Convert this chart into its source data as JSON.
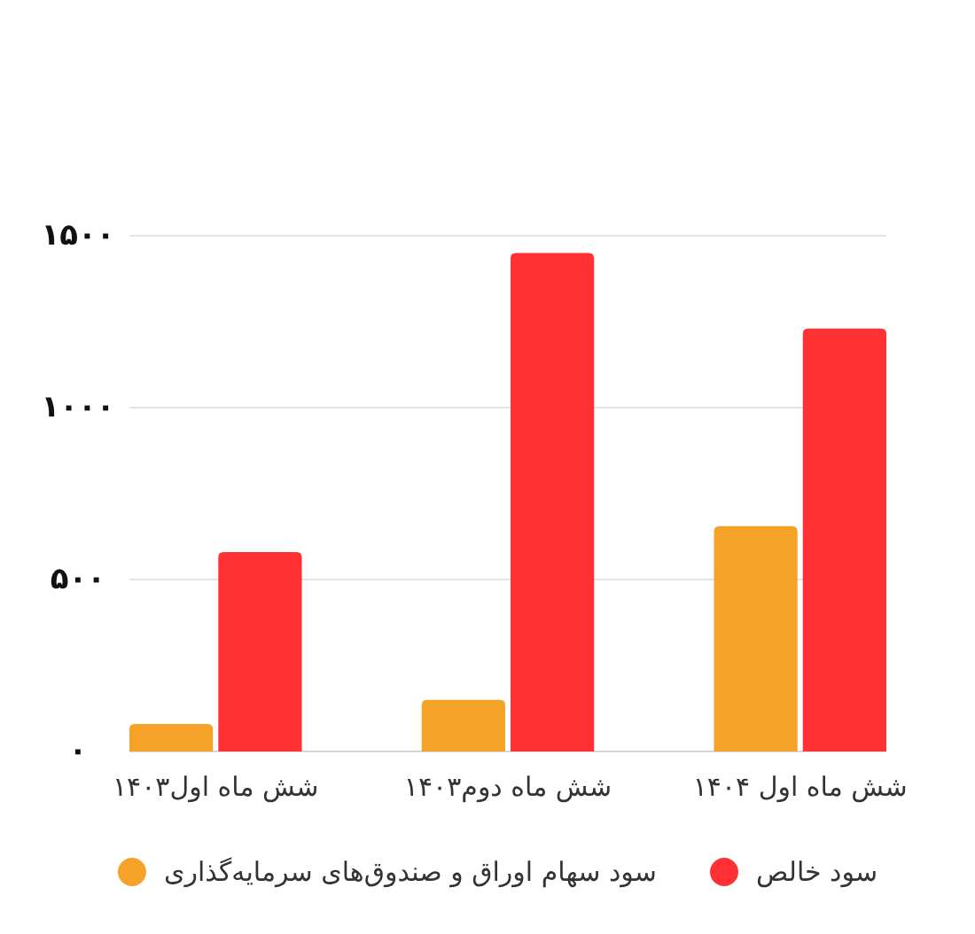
{
  "chart_data": {
    "type": "bar",
    "categories": [
      "شش ماه اول۱۴۰۳",
      "شش ماه دوم۱۴۰۳",
      "شش ماه اول ۱۴۰۴"
    ],
    "series": [
      {
        "name": "سود سهام اوراق و صندوق‌های سرمایه‌گذاری",
        "color": "#f5a228",
        "values": [
          80,
          150,
          655
        ]
      },
      {
        "name": "سود خالص",
        "color": "#ff3134",
        "values": [
          580,
          1450,
          1230
        ]
      }
    ],
    "ylim": [
      0,
      1500
    ],
    "yticks": [
      {
        "value": 0,
        "label": "۰"
      },
      {
        "value": 500,
        "label": "۵۰۰"
      },
      {
        "value": 1000,
        "label": "۱۰۰۰"
      },
      {
        "value": 1500,
        "label": "۱۵۰۰"
      }
    ],
    "grid": "y",
    "legend": "bottom"
  }
}
